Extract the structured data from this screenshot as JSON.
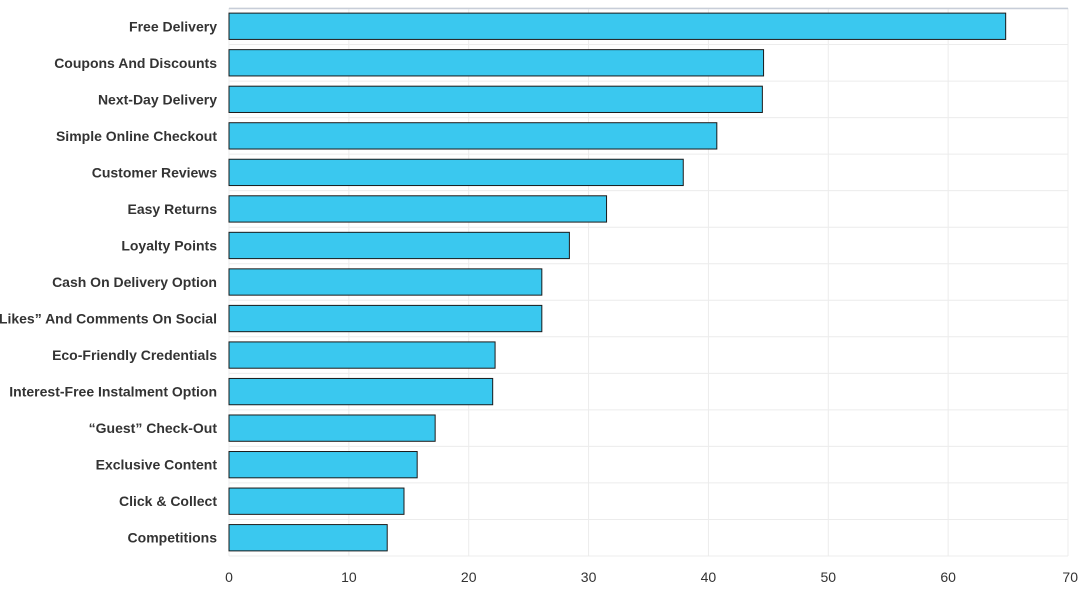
{
  "chart_data": {
    "type": "bar",
    "orientation": "horizontal",
    "categories": [
      "Free Delivery",
      "Coupons And Discounts",
      "Next-Day Delivery",
      "Simple Online Checkout",
      "Customer Reviews",
      "Easy Returns",
      "Loyalty Points",
      "Cash On Delivery Option",
      "“Likes” And Comments On Social",
      "Eco-Friendly Credentials",
      "Interest-Free Instalment Option",
      "“Guest” Check-Out",
      "Exclusive Content",
      "Click & Collect",
      "Competitions"
    ],
    "values": [
      64.8,
      44.6,
      44.5,
      40.7,
      37.9,
      31.5,
      28.4,
      26.1,
      26.1,
      22.2,
      22.0,
      17.2,
      15.7,
      14.6,
      13.2
    ],
    "title": "",
    "xlabel": "",
    "ylabel": "",
    "xlim": [
      0,
      70
    ],
    "xticks": [
      "0",
      "10",
      "20",
      "30",
      "40",
      "50",
      "60",
      "70"
    ],
    "grid": true,
    "bar_color": "#3ac8ef",
    "bar_edge_color": "#1a1a1a"
  }
}
